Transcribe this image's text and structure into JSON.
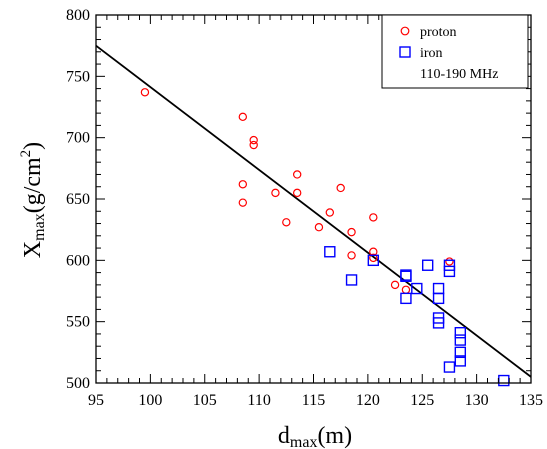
{
  "chart_data": {
    "type": "scatter",
    "xlabel": {
      "main": "d",
      "sub": "max",
      "unit": "(m)"
    },
    "ylabel": {
      "main": "X",
      "sub": "max",
      "unit_pre": "(g/cm",
      "sup": "2",
      "unit_post": ")"
    },
    "xlim": [
      95,
      135
    ],
    "ylim": [
      500,
      800
    ],
    "x_ticks": [
      95,
      100,
      105,
      110,
      115,
      120,
      125,
      130,
      135
    ],
    "y_ticks": [
      500,
      550,
      600,
      650,
      700,
      750,
      800
    ],
    "legend": {
      "position": "top-right",
      "entries": [
        "proton",
        "iron"
      ],
      "note": "110-190 MHz"
    },
    "series": [
      {
        "name": "proton",
        "marker": "circle",
        "color": "#ff0000",
        "points": [
          [
            99.5,
            737
          ],
          [
            108.5,
            717
          ],
          [
            109.5,
            698
          ],
          [
            109.5,
            694
          ],
          [
            108.5,
            662
          ],
          [
            108.5,
            647
          ],
          [
            111.5,
            655
          ],
          [
            113.5,
            670
          ],
          [
            113.5,
            655
          ],
          [
            112.5,
            631
          ],
          [
            115.5,
            627
          ],
          [
            116.5,
            639
          ],
          [
            117.5,
            659
          ],
          [
            118.5,
            623
          ],
          [
            118.5,
            604
          ],
          [
            120.5,
            635
          ],
          [
            120.5,
            607
          ],
          [
            120.5,
            602
          ],
          [
            122.5,
            580
          ],
          [
            123.5,
            576
          ],
          [
            127.5,
            599
          ]
        ]
      },
      {
        "name": "iron",
        "marker": "square",
        "color": "#0000ff",
        "points": [
          [
            116.5,
            607
          ],
          [
            118.5,
            584
          ],
          [
            120.5,
            600
          ],
          [
            123.5,
            588
          ],
          [
            123.5,
            587
          ],
          [
            123.5,
            569
          ],
          [
            124.5,
            577
          ],
          [
            125.5,
            596
          ],
          [
            126.5,
            577
          ],
          [
            126.5,
            569
          ],
          [
            126.5,
            553
          ],
          [
            126.5,
            549
          ],
          [
            127.5,
            596
          ],
          [
            127.5,
            591
          ],
          [
            127.5,
            513
          ],
          [
            128.5,
            541
          ],
          [
            128.5,
            535
          ],
          [
            128.5,
            525
          ],
          [
            128.5,
            518
          ],
          [
            132.5,
            502
          ]
        ]
      }
    ],
    "fit_line": {
      "color": "#000000",
      "points": [
        [
          95,
          775
        ],
        [
          135,
          505
        ]
      ]
    }
  }
}
